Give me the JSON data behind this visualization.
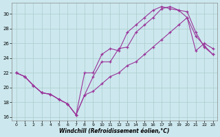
{
  "xlabel": "Windchill (Refroidissement éolien,°C)",
  "xlim": [
    -0.5,
    23.5
  ],
  "ylim": [
    15.5,
    31.5
  ],
  "xticks": [
    0,
    1,
    2,
    3,
    4,
    5,
    6,
    7,
    8,
    9,
    10,
    11,
    12,
    13,
    14,
    15,
    16,
    17,
    18,
    19,
    20,
    21,
    22,
    23
  ],
  "yticks": [
    16,
    18,
    20,
    22,
    24,
    26,
    28,
    30
  ],
  "bg_color": "#cce8ee",
  "grid_color": "#aacccc",
  "line_color": "#993399",
  "hours": [
    0,
    1,
    2,
    3,
    4,
    5,
    6,
    7,
    8,
    9,
    10,
    11,
    12,
    13,
    14,
    15,
    16,
    17,
    18,
    19,
    20,
    21,
    22,
    23
  ],
  "line1_y": [
    22.0,
    21.5,
    20.3,
    19.3,
    19.1,
    18.4,
    17.8,
    16.3,
    22.0,
    22.0,
    24.5,
    25.3,
    25.0,
    27.5,
    28.5,
    29.5,
    30.5,
    31.0,
    30.7,
    30.5,
    30.3,
    27.5,
    25.5,
    24.5
  ],
  "line2_y": [
    22.0,
    21.5,
    20.3,
    19.3,
    19.1,
    18.4,
    17.8,
    16.3,
    19.0,
    21.5,
    23.5,
    23.5,
    25.3,
    25.5,
    27.5,
    28.5,
    29.5,
    30.7,
    31.0,
    30.5,
    29.5,
    25.0,
    26.0,
    25.3
  ],
  "line3_y": [
    22.0,
    21.5,
    20.3,
    19.3,
    19.1,
    18.4,
    17.8,
    16.3,
    19.0,
    19.5,
    20.5,
    21.5,
    22.0,
    23.0,
    23.5,
    24.5,
    25.5,
    26.5,
    27.5,
    28.5,
    29.5,
    27.0,
    25.7,
    24.5
  ]
}
